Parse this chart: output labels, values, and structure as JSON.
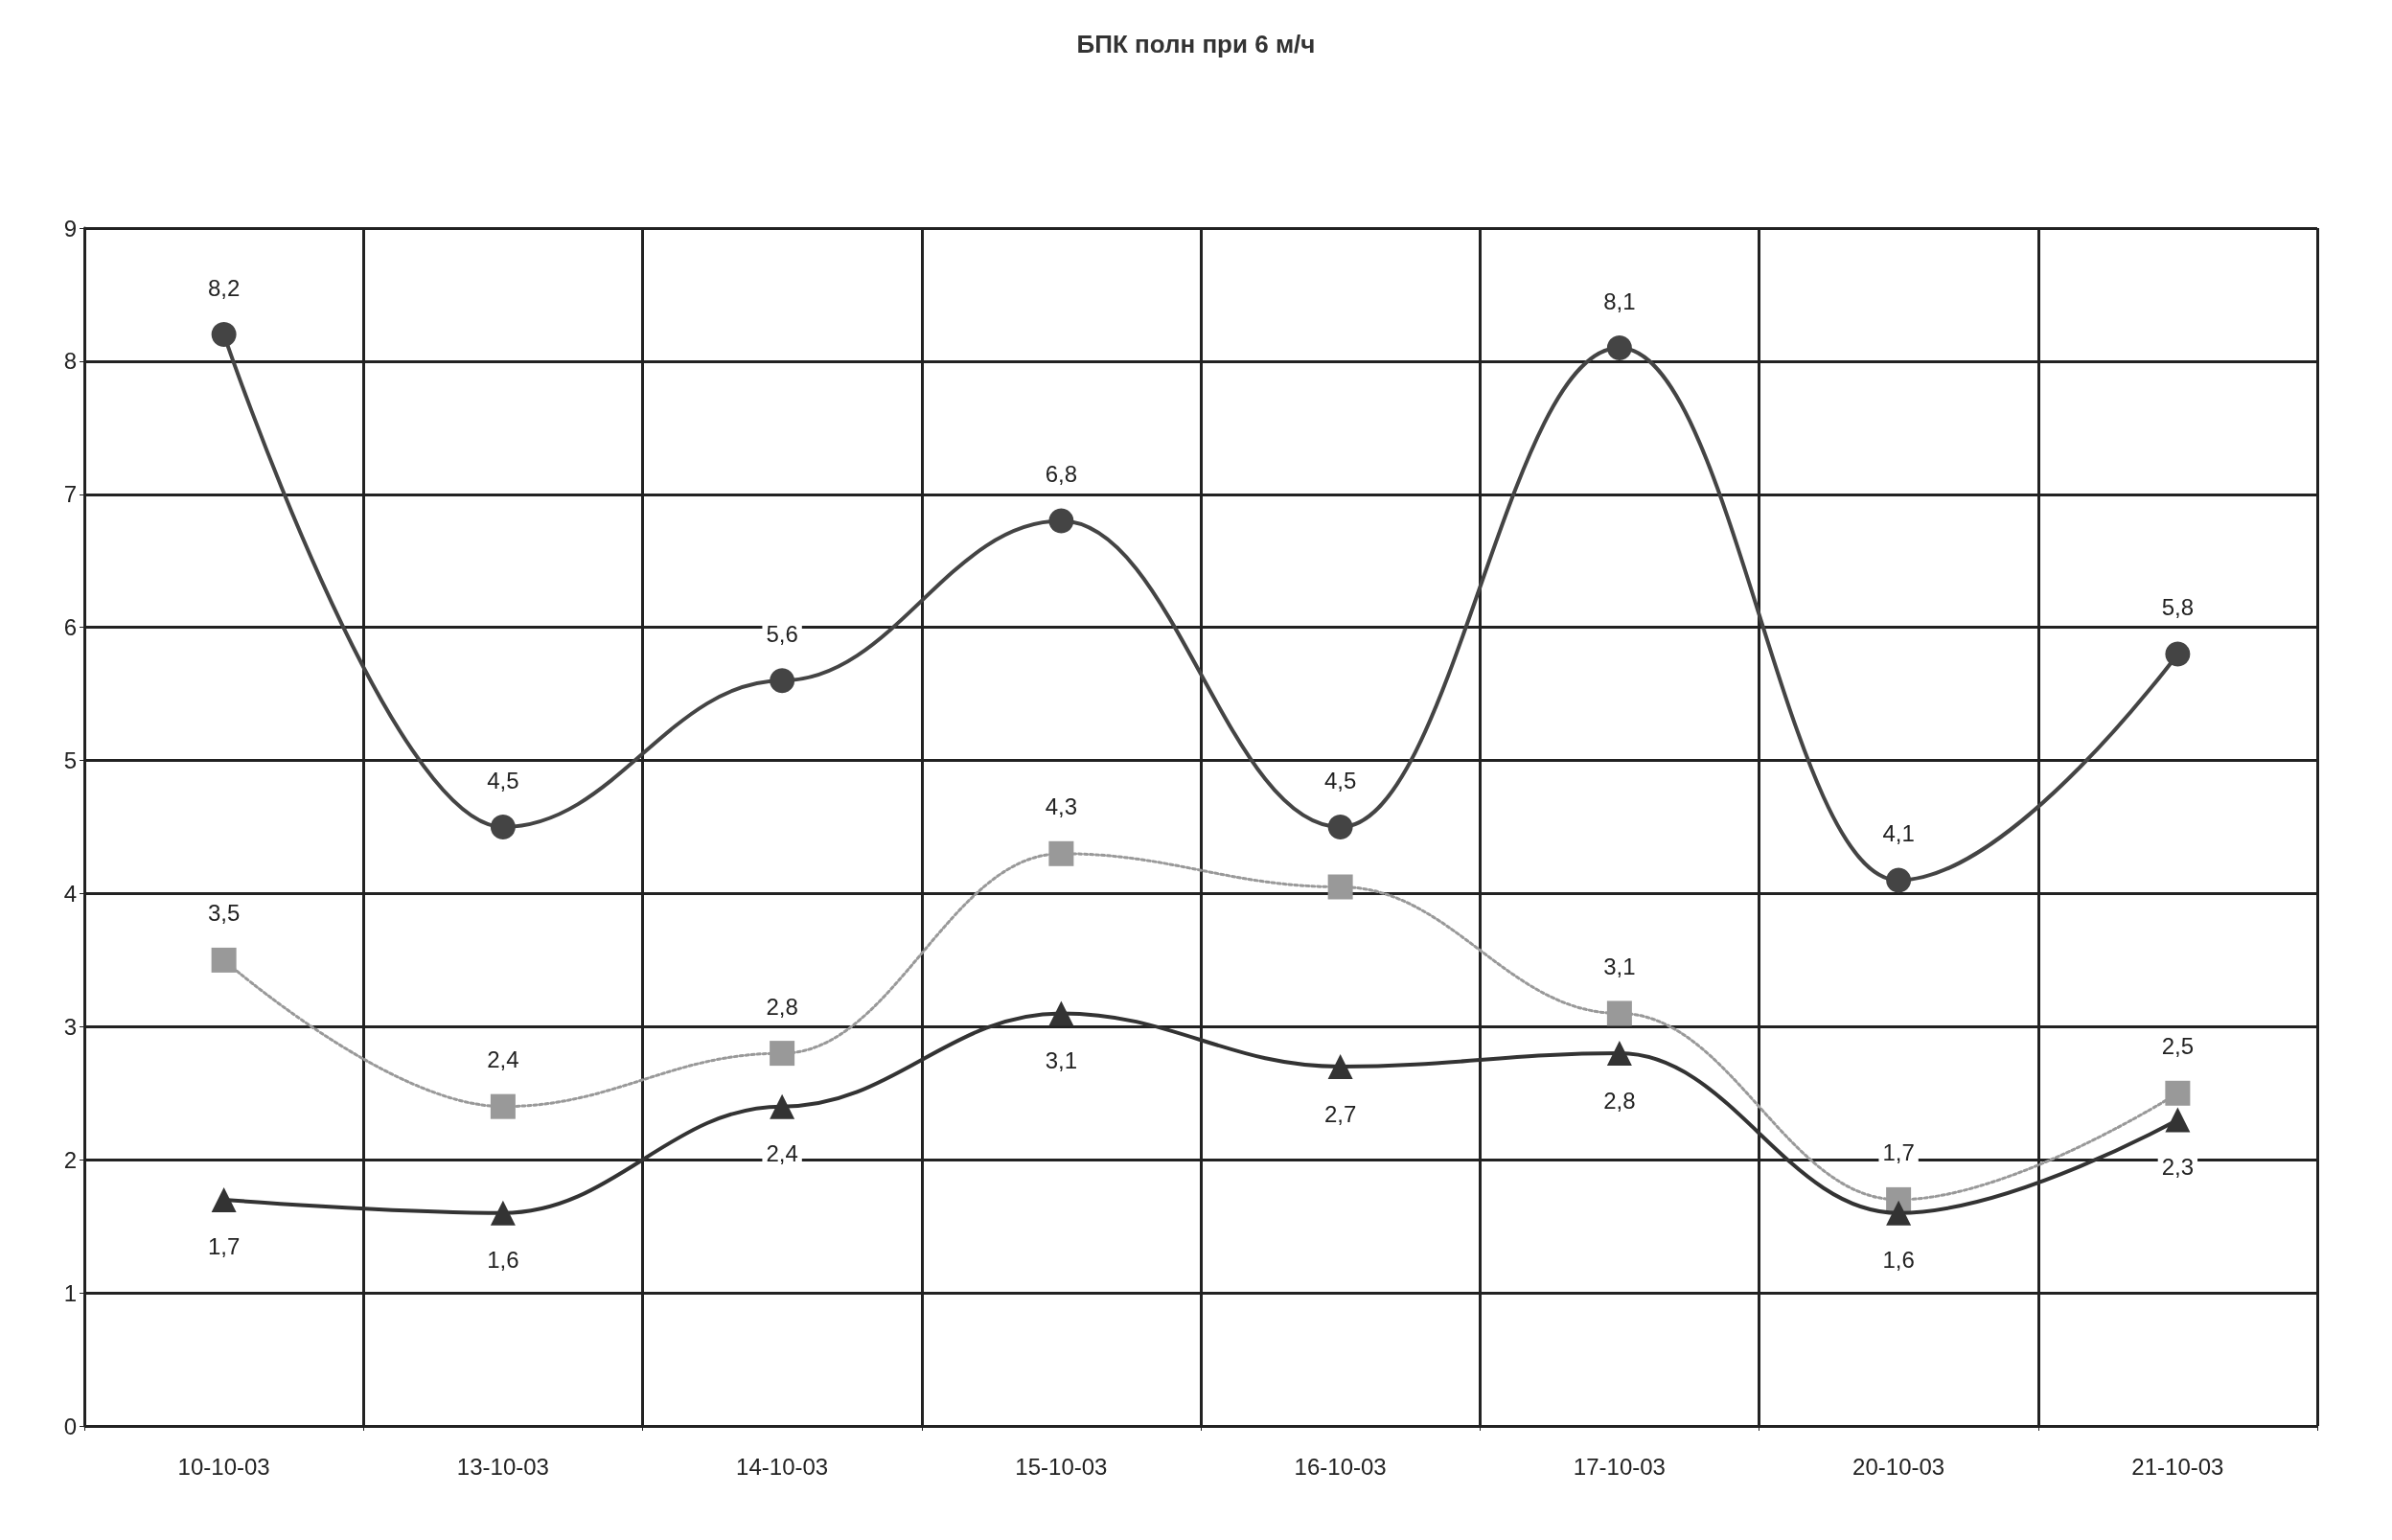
{
  "chart_data": {
    "type": "line",
    "title": "БПК полн при 6 м/ч",
    "categories": [
      "10-10-03",
      "13-10-03",
      "14-10-03",
      "15-10-03",
      "16-10-03",
      "17-10-03",
      "20-10-03",
      "21-10-03"
    ],
    "series": [
      {
        "color": "#444444",
        "marker": "circle",
        "line_style": "solid",
        "values": [
          8.2,
          4.5,
          5.6,
          6.8,
          4.5,
          8.1,
          4.1,
          5.8
        ],
        "value_labels": [
          "8,2",
          "4,5",
          "5,6",
          "6,8",
          "4,5",
          "8,1",
          "4,1",
          "5,8"
        ]
      },
      {
        "color": "#999999",
        "marker": "square",
        "line_style": "dotted",
        "values": [
          3.5,
          2.4,
          2.8,
          4.3,
          4.05,
          3.1,
          1.7,
          2.5
        ],
        "value_labels": [
          "3,5",
          "2,4",
          "2,8",
          "4,3",
          null,
          "3,1",
          "1,7",
          "2,5"
        ]
      },
      {
        "color": "#333333",
        "marker": "triangle",
        "line_style": "solid",
        "values": [
          1.7,
          1.6,
          2.4,
          3.1,
          2.7,
          2.8,
          1.6,
          2.3
        ],
        "value_labels": [
          "1,7",
          "1,6",
          "2,4",
          "3,1",
          "2,7",
          "2,8",
          "1,6",
          "2,3"
        ]
      }
    ],
    "ylim": [
      0,
      9
    ],
    "yticks": [
      0,
      1,
      2,
      3,
      4,
      5,
      6,
      7,
      8,
      9
    ],
    "grid": true
  }
}
